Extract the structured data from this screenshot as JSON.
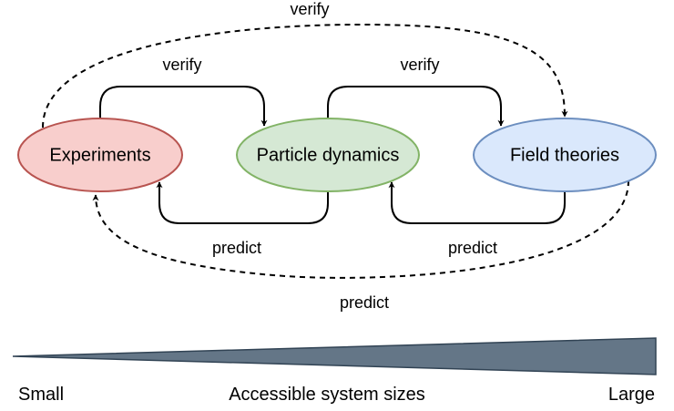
{
  "nodes": {
    "experiments": {
      "label": "Experiments",
      "fill": "#f8cecc",
      "stroke": "#b85450"
    },
    "particle": {
      "label": "Particle dynamics",
      "fill": "#d5e8d4",
      "stroke": "#82b366"
    },
    "field": {
      "label": "Field theories",
      "fill": "#dae8fc",
      "stroke": "#6c8ebf"
    }
  },
  "edges": {
    "verify_1": "verify",
    "verify_2": "verify",
    "verify_long": "verify",
    "predict_1": "predict",
    "predict_2": "predict",
    "predict_long": "predict"
  },
  "scale": {
    "left": "Small",
    "center": "Accessible system sizes",
    "right": "Large",
    "fill": "#647687",
    "stroke": "#314354"
  }
}
